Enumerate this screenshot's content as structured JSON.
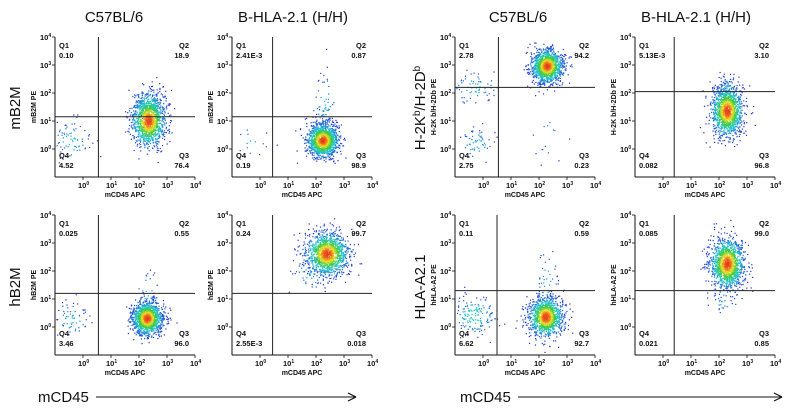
{
  "column_headers": [
    "C57BL/6",
    "B-HLA-2.1 (H/H)",
    "C57BL/6",
    "B-HLA-2.1 (H/H)"
  ],
  "row_labels": [
    "mB2M",
    "hB2M",
    "H-2K",
    "HLA-A2.1"
  ],
  "row_label_h2": {
    "a": "H-2K",
    "sup1": "b",
    "mid": "/H-2D",
    "sup2": "b"
  },
  "bottom_axis_label": "mCD45",
  "tick_base": "10",
  "colors": {
    "axis": "#111111",
    "gate": "#222222",
    "density_low": "#1a2bd8",
    "density_mid": "#1ec8d0",
    "density_high": "#f0e020",
    "density_peak": "#e83a1a"
  },
  "chart_data": [
    {
      "type": "scatter",
      "title": "C57BL/6 mB2M",
      "xlabel": "mCD45 APC",
      "ylabel": "mB2M PE",
      "xlim": [
        -1,
        4
      ],
      "ylim": [
        -1,
        4
      ],
      "x_ticks": [
        "0",
        "1",
        "2",
        "3",
        "4"
      ],
      "y_ticks": [
        "0",
        "1",
        "2",
        "3",
        "4"
      ],
      "gate": {
        "x": 0.55,
        "y": 1.15
      },
      "quadrants": {
        "Q1": "0.10",
        "Q2": "18.9",
        "Q3": "76.4",
        "Q4": "4.52"
      },
      "populations": [
        {
          "x": 2.35,
          "y": 1.0,
          "sx": 0.3,
          "sy": 0.45,
          "weight": 0.82
        },
        {
          "x": -0.4,
          "y": 0.3,
          "sx": 0.35,
          "sy": 0.35,
          "weight": 0.06
        },
        {
          "x": 2.35,
          "y": 1.55,
          "sx": 0.28,
          "sy": 0.3,
          "weight": 0.12
        }
      ]
    },
    {
      "type": "scatter",
      "title": "B-HLA-2.1 (H/H) mB2M",
      "xlabel": "mCD45 APC",
      "ylabel": "mB2M PE",
      "xlim": [
        -1,
        4
      ],
      "ylim": [
        -1,
        4
      ],
      "x_ticks": [
        "0",
        "1",
        "2",
        "3",
        "4"
      ],
      "y_ticks": [
        "0",
        "1",
        "2",
        "3",
        "4"
      ],
      "gate": {
        "x": 0.45,
        "y": 1.15
      },
      "quadrants": {
        "Q1": "2.41E-3",
        "Q2": "0.87",
        "Q3": "98.9",
        "Q4": "0.19"
      },
      "populations": [
        {
          "x": 2.25,
          "y": 0.3,
          "sx": 0.28,
          "sy": 0.3,
          "weight": 0.95
        },
        {
          "x": 2.3,
          "y": 1.5,
          "sx": 0.2,
          "sy": 0.6,
          "weight": 0.04
        },
        {
          "x": -0.3,
          "y": 0.2,
          "sx": 0.3,
          "sy": 0.3,
          "weight": 0.01
        }
      ]
    },
    {
      "type": "scatter",
      "title": "C57BL/6 H-2Kb/H-2Db",
      "xlabel": "mCD45 APC",
      "ylabel": "H-2K b/H-2Db PE",
      "xlim": [
        -1,
        4
      ],
      "ylim": [
        -1,
        4
      ],
      "x_ticks": [
        "0",
        "1",
        "2",
        "3",
        "4"
      ],
      "y_ticks": [
        "0",
        "1",
        "2",
        "3",
        "4"
      ],
      "gate": {
        "x": 0.55,
        "y": 2.2
      },
      "quadrants": {
        "Q1": "2.78",
        "Q2": "94.2",
        "Q3": "0.23",
        "Q4": "2.75"
      },
      "populations": [
        {
          "x": 2.3,
          "y": 2.95,
          "sx": 0.28,
          "sy": 0.3,
          "weight": 0.9
        },
        {
          "x": -0.3,
          "y": 2.2,
          "sx": 0.4,
          "sy": 0.3,
          "weight": 0.05
        },
        {
          "x": -0.2,
          "y": 0.2,
          "sx": 0.3,
          "sy": 0.3,
          "weight": 0.04
        },
        {
          "x": 2.3,
          "y": 0.5,
          "sx": 0.3,
          "sy": 0.4,
          "weight": 0.01
        }
      ]
    },
    {
      "type": "scatter",
      "title": "B-HLA-2.1 (H/H) H-2Kb/H-2Db",
      "xlabel": "mCD45 APC",
      "ylabel": "H-2K b/H-2Db PE",
      "xlim": [
        -1,
        4
      ],
      "ylim": [
        -1,
        4
      ],
      "x_ticks": [
        "0",
        "1",
        "2",
        "3",
        "4"
      ],
      "y_ticks": [
        "0",
        "1",
        "2",
        "3",
        "4"
      ],
      "gate": {
        "x": 0.4,
        "y": 2.05
      },
      "quadrants": {
        "Q1": "5.13E-3",
        "Q2": "3.10",
        "Q3": "96.8",
        "Q4": "0.082"
      },
      "populations": [
        {
          "x": 2.3,
          "y": 1.35,
          "sx": 0.28,
          "sy": 0.45,
          "weight": 0.97
        },
        {
          "x": 2.3,
          "y": 2.2,
          "sx": 0.2,
          "sy": 0.2,
          "weight": 0.03
        }
      ]
    },
    {
      "type": "scatter",
      "title": "C57BL/6 hB2M",
      "xlabel": "mCD45 APC",
      "ylabel": "hB2M PE",
      "xlim": [
        -1,
        4
      ],
      "ylim": [
        -1,
        4
      ],
      "x_ticks": [
        "0",
        "1",
        "2",
        "3",
        "4"
      ],
      "y_ticks": [
        "0",
        "1",
        "2",
        "3",
        "4"
      ],
      "gate": {
        "x": 0.55,
        "y": 1.2
      },
      "quadrants": {
        "Q1": "0.025",
        "Q2": "0.55",
        "Q3": "96.0",
        "Q4": "3.46"
      },
      "populations": [
        {
          "x": 2.3,
          "y": 0.3,
          "sx": 0.27,
          "sy": 0.3,
          "weight": 0.93
        },
        {
          "x": -0.4,
          "y": 0.25,
          "sx": 0.3,
          "sy": 0.3,
          "weight": 0.05
        },
        {
          "x": 2.3,
          "y": 1.2,
          "sx": 0.2,
          "sy": 0.5,
          "weight": 0.02
        }
      ]
    },
    {
      "type": "scatter",
      "title": "B-HLA-2.1 (H/H) hB2M",
      "xlabel": "mCD45 APC",
      "ylabel": "hB2M PE",
      "xlim": [
        -1,
        4
      ],
      "ylim": [
        -1,
        4
      ],
      "x_ticks": [
        "0",
        "1",
        "2",
        "3",
        "4"
      ],
      "y_ticks": [
        "0",
        "1",
        "2",
        "3",
        "4"
      ],
      "gate": {
        "x": 0.45,
        "y": 1.2
      },
      "quadrants": {
        "Q1": "0.24",
        "Q2": "99.7",
        "Q3": "0.018",
        "Q4": "2.55E-3"
      },
      "populations": [
        {
          "x": 2.4,
          "y": 2.6,
          "sx": 0.38,
          "sy": 0.38,
          "weight": 0.97
        },
        {
          "x": 1.9,
          "y": 2.0,
          "sx": 0.4,
          "sy": 0.4,
          "weight": 0.03
        }
      ]
    },
    {
      "type": "scatter",
      "title": "C57BL/6 HLA-A2.1",
      "xlabel": "mCD45 APC",
      "ylabel": "hHLA-A2 PE",
      "xlim": [
        -1,
        4
      ],
      "ylim": [
        -1,
        4
      ],
      "x_ticks": [
        "0",
        "1",
        "2",
        "3",
        "4"
      ],
      "y_ticks": [
        "0",
        "1",
        "2",
        "3",
        "4"
      ],
      "gate": {
        "x": 0.5,
        "y": 1.3
      },
      "quadrants": {
        "Q1": "0.11",
        "Q2": "0.59",
        "Q3": "92.7",
        "Q4": "6.62"
      },
      "populations": [
        {
          "x": 2.25,
          "y": 0.35,
          "sx": 0.3,
          "sy": 0.35,
          "weight": 0.86
        },
        {
          "x": -0.3,
          "y": 0.4,
          "sx": 0.4,
          "sy": 0.35,
          "weight": 0.11
        },
        {
          "x": 2.3,
          "y": 1.6,
          "sx": 0.2,
          "sy": 0.6,
          "weight": 0.03
        }
      ]
    },
    {
      "type": "scatter",
      "title": "B-HLA-2.1 (H/H) HLA-A2.1",
      "xlabel": "mCD45 APC",
      "ylabel": "hHLA-A2 PE",
      "xlim": [
        -1,
        4
      ],
      "ylim": [
        -1,
        4
      ],
      "x_ticks": [
        "0",
        "1",
        "2",
        "3",
        "4"
      ],
      "y_ticks": [
        "0",
        "1",
        "2",
        "3",
        "4"
      ],
      "gate": {
        "x": 0.4,
        "y": 1.3
      },
      "quadrants": {
        "Q1": "0.085",
        "Q2": "99.0",
        "Q3": "0.85",
        "Q4": "0.021"
      },
      "populations": [
        {
          "x": 2.3,
          "y": 2.25,
          "sx": 0.3,
          "sy": 0.45,
          "weight": 0.98
        },
        {
          "x": 2.2,
          "y": 1.0,
          "sx": 0.25,
          "sy": 0.3,
          "weight": 0.02
        }
      ]
    }
  ]
}
